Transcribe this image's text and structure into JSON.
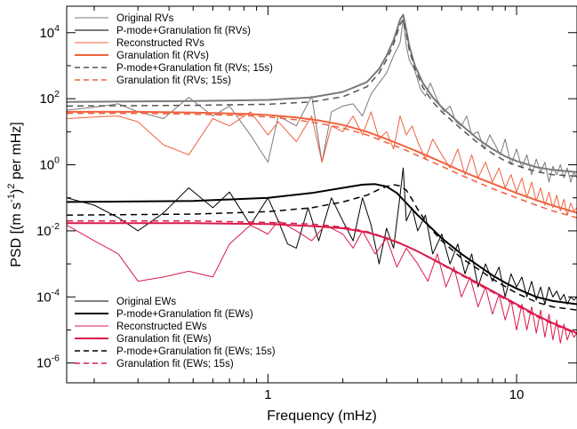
{
  "chart_data": {
    "type": "line",
    "xlabel": "Frequency (mHz)",
    "ylabel_parts": {
      "a": "PSD [(m s",
      "b": "-1",
      "c": ")",
      "d": "2",
      "e": " per mHz]"
    },
    "x_scale": "log",
    "y_scale": "log",
    "xlim": [
      0.155,
      17.5
    ],
    "ylim_exp": [
      -6.6,
      4.8
    ],
    "xticks": [
      {
        "value": 1,
        "label": "1"
      },
      {
        "value": 10,
        "label": "10"
      }
    ],
    "yticks": [
      {
        "exp": 4,
        "base": "10",
        "sup": "4"
      },
      {
        "exp": 2,
        "base": "10",
        "sup": "2"
      },
      {
        "exp": 0,
        "base": "10",
        "sup": "0"
      },
      {
        "exp": -2,
        "base": "10",
        "sup": "-2"
      },
      {
        "exp": -4,
        "base": "10",
        "sup": "-4"
      },
      {
        "exp": -6,
        "base": "10",
        "sup": "-6"
      }
    ],
    "legends": [
      {
        "position": "top-left",
        "entries": [
          {
            "label": "Original RVs",
            "color": "#7a7a7a",
            "dash": "solid",
            "width": 1
          },
          {
            "label": "P-mode+Granulation fit (RVs)",
            "color": "#7a7a7a",
            "dash": "solid",
            "width": 2
          },
          {
            "label": "Reconstructed RVs",
            "color": "#f0623e",
            "dash": "solid",
            "width": 1
          },
          {
            "label": "Granulation fit (RVs)",
            "color": "#f0623e",
            "dash": "solid",
            "width": 2
          },
          {
            "label": "P-mode+Granulation fit (RVs; 15s)",
            "color": "#555555",
            "dash": "dashed",
            "width": 1.5
          },
          {
            "label": "Granulation fit (RVs; 15s)",
            "color": "#f0623e",
            "dash": "dashed",
            "width": 1.5
          }
        ]
      },
      {
        "position": "bottom-left",
        "entries": [
          {
            "label": "Original EWs",
            "color": "#000000",
            "dash": "solid",
            "width": 1
          },
          {
            "label": "P-mode+Granulation fit (EWs)",
            "color": "#000000",
            "dash": "solid",
            "width": 2
          },
          {
            "label": "Reconstructed EWs",
            "color": "#d81b4a",
            "dash": "solid",
            "width": 1
          },
          {
            "label": "Granulation fit (EWs)",
            "color": "#d81b4a",
            "dash": "solid",
            "width": 2
          },
          {
            "label": "P-mode+Granulation fit (EWs; 15s)",
            "color": "#000000",
            "dash": "dashed",
            "width": 1.5
          },
          {
            "label": "Granulation fit (EWs; 15s)",
            "color": "#d81b4a",
            "dash": "dashed",
            "width": 1.5
          }
        ]
      }
    ],
    "series": [
      {
        "name": "Original RVs",
        "color": "#7a7a7a",
        "dash": "solid",
        "width": 1,
        "x": [
          0.155,
          0.2,
          0.25,
          0.3,
          0.38,
          0.48,
          0.6,
          0.7,
          0.85,
          1.0,
          1.1,
          1.3,
          1.5,
          1.65,
          1.8,
          2.0,
          2.2,
          2.4,
          2.6,
          2.8,
          3.0,
          3.2,
          3.4,
          3.5,
          3.6,
          3.7,
          3.9,
          4.1,
          4.3,
          4.5,
          4.8,
          5.1,
          5.4,
          5.7,
          6.0,
          6.3,
          6.6,
          7.0,
          7.4,
          7.8,
          8.2,
          8.6,
          9.0,
          9.5,
          10,
          10.5,
          11,
          11.5,
          12,
          12.5,
          13,
          13.5,
          14,
          14.5,
          15,
          15.5,
          16,
          16.5,
          17,
          17.5
        ],
        "y": [
          45,
          55,
          70,
          40,
          25,
          110,
          30,
          60,
          8,
          1.2,
          30,
          15,
          120,
          1.2,
          40,
          60,
          70,
          30,
          140,
          300,
          600,
          2000,
          5000,
          25000,
          4000,
          1500,
          700,
          200,
          120,
          300,
          90,
          40,
          60,
          20,
          15,
          30,
          8,
          10,
          3,
          8,
          4,
          2,
          6,
          1,
          3,
          0.8,
          2,
          0.5,
          1.5,
          0.6,
          1.2,
          0.3,
          0.9,
          0.5,
          1.0,
          0.4,
          0.8,
          0.3,
          0.6,
          0.4
        ]
      },
      {
        "name": "P-mode+Granulation fit (RVs)",
        "color": "#7a7a7a",
        "dash": "solid",
        "width": 2,
        "x": [
          0.155,
          0.5,
          1.0,
          1.5,
          2.0,
          2.5,
          2.8,
          3.0,
          3.2,
          3.3,
          3.4,
          3.5,
          3.6,
          3.7,
          3.9,
          4.2,
          4.6,
          5.0,
          6.0,
          7.0,
          8.0,
          9.0,
          10,
          12,
          14,
          17.5
        ],
        "y": [
          80,
          85,
          92,
          110,
          160,
          320,
          800,
          2000,
          6000,
          12000,
          25000,
          35000,
          12000,
          4000,
          1000,
          300,
          110,
          55,
          16,
          6,
          3,
          1.8,
          1.3,
          0.85,
          0.7,
          0.6
        ]
      },
      {
        "name": "P-mode+Granulation fit (RVs; 15s)",
        "color": "#555555",
        "dash": "dashed",
        "width": 1.5,
        "x": [
          0.155,
          0.5,
          1.0,
          1.5,
          2.0,
          2.5,
          2.8,
          3.0,
          3.2,
          3.3,
          3.4,
          3.5,
          3.6,
          3.7,
          3.9,
          4.2,
          4.6,
          5.0,
          6.0,
          7.0,
          8.0,
          9.0,
          10,
          12,
          14,
          17.5
        ],
        "y": [
          60,
          63,
          68,
          80,
          115,
          230,
          600,
          1500,
          4500,
          9000,
          18000,
          25000,
          9000,
          3000,
          800,
          220,
          80,
          40,
          12,
          4.5,
          2.2,
          1.3,
          0.95,
          0.62,
          0.5,
          0.45
        ]
      },
      {
        "name": "Reconstructed RVs",
        "color": "#f0623e",
        "dash": "solid",
        "width": 1,
        "x": [
          0.155,
          0.2,
          0.25,
          0.3,
          0.38,
          0.48,
          0.6,
          0.7,
          0.85,
          1.0,
          1.1,
          1.3,
          1.5,
          1.65,
          1.8,
          2.0,
          2.2,
          2.4,
          2.6,
          2.8,
          3.0,
          3.2,
          3.4,
          3.6,
          3.8,
          4.0,
          4.3,
          4.6,
          5.0,
          5.4,
          5.8,
          6.2,
          6.6,
          7.0,
          7.5,
          8.0,
          8.5,
          9.0,
          9.5,
          10,
          10.5,
          11,
          11.5,
          12,
          12.5,
          13,
          13.5,
          14,
          14.5,
          15,
          15.5,
          16,
          16.5,
          17,
          17.5
        ],
        "y": [
          25,
          28,
          30,
          20,
          4,
          2,
          25,
          15,
          40,
          8,
          20,
          5,
          30,
          1.2,
          15,
          10,
          30,
          8,
          40,
          6,
          10,
          3,
          30,
          8,
          15,
          5,
          1.5,
          6,
          2,
          0.8,
          3,
          0.5,
          2,
          0.4,
          1.2,
          0.3,
          0.8,
          0.2,
          0.5,
          0.15,
          0.4,
          0.1,
          0.3,
          0.08,
          0.2,
          0.06,
          0.15,
          0.05,
          0.12,
          0.04,
          0.09,
          0.03,
          0.07,
          0.04,
          0.05
        ]
      },
      {
        "name": "Granulation fit (RVs)",
        "color": "#f0623e",
        "dash": "solid",
        "width": 2,
        "x": [
          0.155,
          0.3,
          0.5,
          0.8,
          1.0,
          1.3,
          1.6,
          2.0,
          2.5,
          3.0,
          3.5,
          4.0,
          5.0,
          6.0,
          7.0,
          8.0,
          10,
          12,
          14,
          17.5
        ],
        "y": [
          40,
          40,
          38,
          35,
          32,
          27,
          22,
          16,
          10,
          6,
          3.8,
          2.5,
          1.2,
          0.65,
          0.4,
          0.27,
          0.14,
          0.085,
          0.058,
          0.035
        ]
      },
      {
        "name": "Granulation fit (RVs; 15s)",
        "color": "#f0623e",
        "dash": "dashed",
        "width": 1.5,
        "x": [
          0.155,
          0.3,
          0.5,
          0.8,
          1.0,
          1.3,
          1.6,
          2.0,
          2.5,
          3.0,
          3.5,
          4.0,
          5.0,
          6.0,
          7.0,
          8.0,
          10,
          12,
          14,
          17.5
        ],
        "y": [
          36,
          36,
          34,
          31,
          28,
          23,
          18,
          13,
          8,
          4.7,
          3.0,
          1.9,
          0.9,
          0.48,
          0.29,
          0.19,
          0.1,
          0.06,
          0.04,
          0.025
        ]
      },
      {
        "name": "Original EWs",
        "color": "#000000",
        "dash": "solid",
        "width": 1,
        "x": [
          0.155,
          0.2,
          0.25,
          0.3,
          0.38,
          0.48,
          0.6,
          0.7,
          0.85,
          1.0,
          1.1,
          1.2,
          1.3,
          1.45,
          1.6,
          1.8,
          2.0,
          2.2,
          2.4,
          2.6,
          2.8,
          3.0,
          3.2,
          3.4,
          3.5,
          3.6,
          3.8,
          4.0,
          4.3,
          4.6,
          5.0,
          5.4,
          5.8,
          6.2,
          6.6,
          7.0,
          7.5,
          8.0,
          8.5,
          9.0,
          9.5,
          10,
          10.5,
          11,
          11.5,
          12,
          12.5,
          13,
          13.5,
          14,
          14.5,
          15,
          15.5,
          16,
          16.5,
          17,
          17.5
        ],
        "y": [
          0.1,
          0.06,
          0.025,
          0.01,
          0.035,
          0.2,
          0.05,
          0.15,
          0.015,
          0.1,
          0.02,
          0.004,
          0.003,
          0.05,
          0.005,
          0.1,
          0.02,
          0.005,
          0.1,
          0.015,
          0.001,
          0.012,
          0.003,
          0.12,
          0.8,
          0.02,
          0.05,
          0.01,
          0.03,
          0.002,
          0.008,
          0.001,
          0.004,
          0.0005,
          0.002,
          0.0002,
          0.001,
          0.0003,
          0.0008,
          0.0001,
          0.0005,
          0.0002,
          0.0004,
          0.0001,
          0.0003,
          8e-05,
          0.0002,
          6e-05,
          0.0002,
          0.0001,
          0.00015,
          8e-05,
          0.00012,
          6e-05,
          0.0001,
          8e-05,
          0.0001
        ]
      },
      {
        "name": "P-mode+Granulation fit (EWs)",
        "color": "#000000",
        "dash": "solid",
        "width": 2,
        "x": [
          0.155,
          0.5,
          1.0,
          1.5,
          2.0,
          2.4,
          2.7,
          3.0,
          3.3,
          3.6,
          4.0,
          4.5,
          5.0,
          6.0,
          7.0,
          8.0,
          9.0,
          10,
          12,
          14,
          17.5
        ],
        "y": [
          0.075,
          0.08,
          0.1,
          0.14,
          0.2,
          0.25,
          0.26,
          0.22,
          0.14,
          0.07,
          0.03,
          0.013,
          0.006,
          0.002,
          0.0009,
          0.00045,
          0.00027,
          0.00018,
          0.0001,
          7.5e-05,
          6e-05
        ]
      },
      {
        "name": "P-mode+Granulation fit (EWs; 15s)",
        "color": "#000000",
        "dash": "dashed",
        "width": 1.5,
        "x": [
          0.155,
          0.5,
          1.0,
          1.5,
          2.0,
          2.5,
          2.8,
          3.0,
          3.2,
          3.4,
          3.6,
          3.8,
          4.0,
          4.5,
          5.0,
          6.0,
          7.0,
          8.0,
          10,
          12,
          14,
          17.5
        ],
        "y": [
          0.03,
          0.032,
          0.038,
          0.05,
          0.075,
          0.12,
          0.18,
          0.22,
          0.25,
          0.23,
          0.17,
          0.09,
          0.045,
          0.012,
          0.005,
          0.0015,
          0.0007,
          0.00035,
          0.00013,
          7e-05,
          5e-05,
          4e-05
        ]
      },
      {
        "name": "Reconstructed EWs",
        "color": "#d81b4a",
        "dash": "solid",
        "width": 1,
        "x": [
          0.155,
          0.2,
          0.25,
          0.3,
          0.38,
          0.48,
          0.6,
          0.7,
          0.85,
          1.0,
          1.1,
          1.3,
          1.5,
          1.7,
          2.0,
          2.2,
          2.4,
          2.7,
          3.0,
          3.3,
          3.6,
          4.0,
          4.4,
          4.8,
          5.2,
          5.6,
          6.0,
          6.5,
          7.0,
          7.5,
          8.0,
          8.5,
          9.0,
          9.5,
          10,
          10.5,
          11,
          11.5,
          12,
          12.5,
          13,
          13.5,
          14,
          14.5,
          15,
          15.5,
          16,
          16.5,
          17,
          17.5
        ],
        "y": [
          0.015,
          0.005,
          0.002,
          0.0003,
          0.0004,
          0.0006,
          0.0004,
          0.004,
          0.015,
          0.008,
          0.02,
          0.01,
          0.005,
          0.015,
          0.008,
          0.003,
          0.01,
          0.002,
          0.006,
          0.0008,
          0.003,
          0.001,
          0.0003,
          0.002,
          0.0002,
          0.0008,
          0.0001,
          0.0004,
          5e-05,
          0.0002,
          3e-05,
          0.00012,
          2e-05,
          8e-05,
          1e-05,
          6e-05,
          1e-05,
          5e-05,
          8e-06,
          4e-05,
          6e-06,
          3e-05,
          5e-06,
          2e-05,
          4e-06,
          1.5e-05,
          5e-06,
          1e-05,
          6e-06,
          8e-06
        ]
      },
      {
        "name": "Granulation fit (EWs)",
        "color": "#d81b4a",
        "dash": "solid",
        "width": 2,
        "x": [
          0.155,
          0.5,
          1.0,
          1.5,
          2.0,
          2.5,
          3.0,
          3.5,
          4.0,
          5.0,
          6.0,
          7.0,
          8.0,
          10,
          12,
          14,
          17.5
        ],
        "y": [
          0.017,
          0.017,
          0.016,
          0.014,
          0.012,
          0.009,
          0.006,
          0.0038,
          0.0024,
          0.001,
          0.00048,
          0.00026,
          0.00015,
          6e-05,
          2.8e-05,
          1.6e-05,
          8e-06
        ]
      },
      {
        "name": "Granulation fit (EWs; 15s)",
        "color": "#d81b4a",
        "dash": "dashed",
        "width": 1.5,
        "x": [
          0.155,
          0.5,
          1.0,
          1.5,
          2.0,
          2.5,
          3.0,
          3.5,
          4.0,
          5.0,
          6.0,
          7.0,
          8.0,
          10,
          12,
          14,
          17.5
        ],
        "y": [
          0.02,
          0.02,
          0.018,
          0.016,
          0.013,
          0.0095,
          0.0062,
          0.0039,
          0.0024,
          0.00095,
          0.00045,
          0.00024,
          0.00014,
          5.5e-05,
          2.6e-05,
          1.5e-05,
          7.5e-06
        ]
      }
    ]
  }
}
